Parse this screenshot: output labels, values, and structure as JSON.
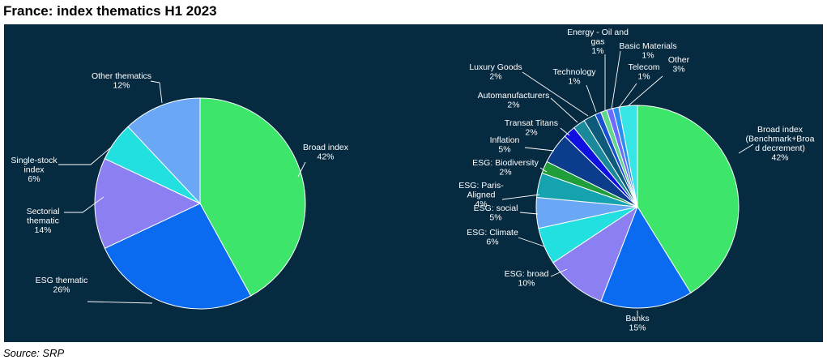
{
  "title": "France: index thematics H1 2023",
  "source": "Source: SRP",
  "chart_data": [
    {
      "type": "pie",
      "title": "",
      "start": "12 o'clock",
      "direction": "clockwise",
      "slices": [
        {
          "label": "Broad index",
          "value": 42,
          "display": "42%",
          "color": "#3de66a"
        },
        {
          "label": "ESG thematic",
          "value": 26,
          "display": "26%",
          "color": "#0a6af0"
        },
        {
          "label": "Sectorial thematic",
          "value": 14,
          "display": "14%",
          "color": "#8b7ff2"
        },
        {
          "label": "Single-stock index",
          "value": 6,
          "display": "6%",
          "color": "#22e0e0"
        },
        {
          "label": "Other thematics",
          "value": 12,
          "display": "12%",
          "color": "#6aa7f5"
        }
      ]
    },
    {
      "type": "pie",
      "title": "",
      "start": "12 o'clock",
      "direction": "clockwise",
      "slices": [
        {
          "label": "Broad index (Benchmark+Broad decrement)",
          "value": 42,
          "display": "42%",
          "color": "#3de66a"
        },
        {
          "label": "Banks",
          "value": 15,
          "display": "15%",
          "color": "#0a6af0"
        },
        {
          "label": "ESG: broad",
          "value": 10,
          "display": "10%",
          "color": "#8b7ff2"
        },
        {
          "label": "ESG: Climate",
          "value": 6,
          "display": "6%",
          "color": "#22e0e0"
        },
        {
          "label": "ESG: social",
          "value": 5,
          "display": "5%",
          "color": "#6aa7f5"
        },
        {
          "label": "ESG: Paris-Aligned",
          "value": 4,
          "display": "4%",
          "color": "#16a3b0"
        },
        {
          "label": "ESG: Biodiversity",
          "value": 2,
          "display": "2%",
          "color": "#1f9e3a"
        },
        {
          "label": "Inflation",
          "value": 5,
          "display": "5%",
          "color": "#0b3d8c"
        },
        {
          "label": "Transat Titans",
          "value": 2,
          "display": "2%",
          "color": "#1010e0"
        },
        {
          "label": "Automanufacturers",
          "value": 2,
          "display": "2%",
          "color": "#1a8a9a"
        },
        {
          "label": "Luxury Goods",
          "value": 2,
          "display": "2%",
          "color": "#0e5a7a"
        },
        {
          "label": "Technology",
          "value": 1,
          "display": "1%",
          "color": "#1a4fd0"
        },
        {
          "label": "Energy - Oil and gas",
          "value": 1,
          "display": "1%",
          "color": "#62d68a"
        },
        {
          "label": "Basic Materials",
          "value": 1,
          "display": "1%",
          "color": "#6b6bff"
        },
        {
          "label": "Telecom",
          "value": 1,
          "display": "1%",
          "color": "#2c8cf0"
        },
        {
          "label": "Other",
          "value": 3,
          "display": "3%",
          "color": "#38e5e5"
        }
      ]
    }
  ]
}
